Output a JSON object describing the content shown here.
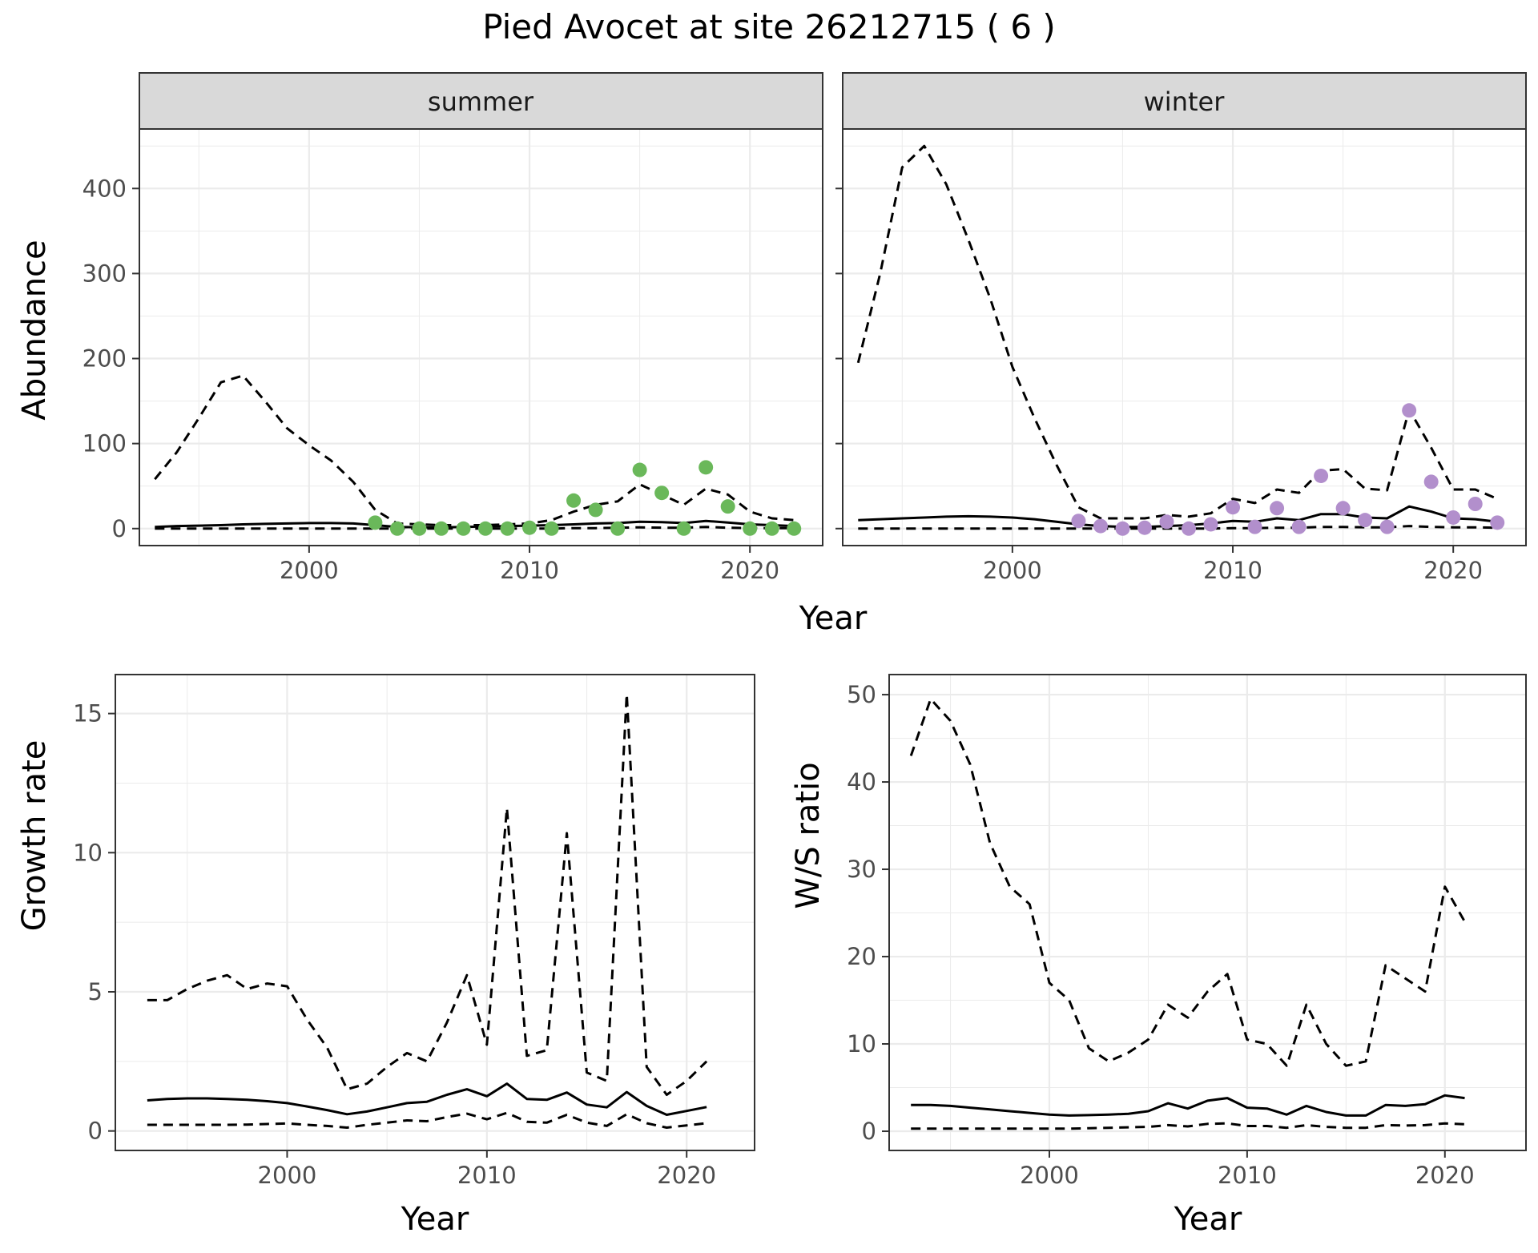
{
  "title": "Pied Avocet at site 26212715 ( 6 )",
  "colors": {
    "summer_points": "#6ab85a",
    "winter_points": "#b28fcc",
    "line": "#000000",
    "strip_fill": "#d9d9d9",
    "grid": "#ebebeb",
    "tick_text": "#4d4d4d"
  },
  "chart_data": [
    {
      "type": "line",
      "panel": "abundance",
      "facets": [
        "summer",
        "winter"
      ],
      "ylabel": "Abundance",
      "xlabel": "Year",
      "xlim": [
        1992.3,
        2023.3
      ],
      "ylim": [
        -20,
        470
      ],
      "x_ticks": [
        2000,
        2010,
        2020
      ],
      "y_ticks": [
        0,
        100,
        200,
        300,
        400
      ],
      "grid": true,
      "series": [
        {
          "facet": "summer",
          "style": "solid",
          "role": "estimate",
          "x": [
            1993,
            1994,
            1995,
            1996,
            1997,
            1998,
            1999,
            2000,
            2001,
            2002,
            2003,
            2004,
            2005,
            2006,
            2007,
            2008,
            2009,
            2010,
            2011,
            2012,
            2013,
            2014,
            2015,
            2016,
            2017,
            2018,
            2019,
            2020,
            2021,
            2022
          ],
          "y": [
            2,
            3,
            3.5,
            4,
            5,
            5.5,
            6,
            6.5,
            6.5,
            6,
            4,
            2,
            1.5,
            1.5,
            2,
            2.5,
            3,
            3.5,
            4,
            5,
            6,
            6.5,
            8,
            7.5,
            6.5,
            9,
            7,
            5,
            4,
            3
          ]
        },
        {
          "facet": "summer",
          "style": "dashed",
          "role": "upper",
          "x": [
            1993,
            1994,
            1995,
            1996,
            1997,
            1998,
            1999,
            2000,
            2001,
            2002,
            2003,
            2004,
            2005,
            2006,
            2007,
            2008,
            2009,
            2010,
            2011,
            2012,
            2013,
            2014,
            2015,
            2016,
            2017,
            2018,
            2019,
            2020,
            2021,
            2022
          ],
          "y": [
            58,
            90,
            130,
            172,
            180,
            150,
            118,
            98,
            80,
            55,
            22,
            6,
            5,
            4,
            4,
            4,
            5,
            6,
            10,
            20,
            28,
            32,
            52,
            40,
            28,
            47,
            40,
            20,
            12,
            10
          ]
        },
        {
          "facet": "summer",
          "style": "dashed",
          "role": "lower",
          "x": [
            1993,
            1994,
            1995,
            1996,
            1997,
            1998,
            1999,
            2000,
            2001,
            2002,
            2003,
            2004,
            2005,
            2006,
            2007,
            2008,
            2009,
            2010,
            2011,
            2012,
            2013,
            2014,
            2015,
            2016,
            2017,
            2018,
            2019,
            2020,
            2021,
            2022
          ],
          "y": [
            0,
            0,
            0,
            0,
            0,
            0,
            0,
            0,
            0,
            0,
            0,
            0,
            0,
            0,
            0,
            0,
            0,
            0,
            0,
            0.5,
            0.5,
            1,
            1.5,
            1,
            1,
            2,
            1,
            0.5,
            0.5,
            0.5
          ]
        },
        {
          "facet": "summer",
          "style": "points",
          "role": "observed",
          "x": [
            2003,
            2004,
            2005,
            2006,
            2007,
            2008,
            2009,
            2010,
            2011,
            2012,
            2013,
            2014,
            2015,
            2016,
            2017,
            2018,
            2019,
            2020,
            2021,
            2022
          ],
          "y": [
            7,
            0,
            0,
            0,
            0,
            0,
            0,
            1,
            0,
            33,
            22,
            0,
            69,
            42,
            0,
            72,
            26,
            0,
            0,
            0
          ]
        },
        {
          "facet": "winter",
          "style": "solid",
          "role": "estimate",
          "x": [
            1993,
            1994,
            1995,
            1996,
            1997,
            1998,
            1999,
            2000,
            2001,
            2002,
            2003,
            2004,
            2005,
            2006,
            2007,
            2008,
            2009,
            2010,
            2011,
            2012,
            2013,
            2014,
            2015,
            2016,
            2017,
            2018,
            2019,
            2020,
            2021,
            2022
          ],
          "y": [
            10,
            11,
            12,
            13,
            14,
            14.5,
            14,
            13,
            11,
            8,
            5,
            3,
            2,
            2,
            3,
            4,
            6,
            9,
            8,
            12,
            10,
            17,
            17,
            13,
            12,
            26,
            20,
            12,
            11,
            8
          ]
        },
        {
          "facet": "winter",
          "style": "dashed",
          "role": "upper",
          "x": [
            1993,
            1994,
            1995,
            1996,
            1997,
            1998,
            1999,
            2000,
            2001,
            2002,
            2003,
            2004,
            2005,
            2006,
            2007,
            2008,
            2009,
            2010,
            2011,
            2012,
            2013,
            2014,
            2015,
            2016,
            2017,
            2018,
            2019,
            2020,
            2021,
            2022
          ],
          "y": [
            195,
            300,
            425,
            450,
            405,
            340,
            270,
            190,
            130,
            75,
            25,
            12,
            12,
            12,
            16,
            14,
            18,
            35,
            30,
            46,
            42,
            68,
            70,
            47,
            45,
            140,
            95,
            46,
            46,
            35
          ]
        },
        {
          "facet": "winter",
          "style": "dashed",
          "role": "lower",
          "x": [
            1993,
            1994,
            1995,
            1996,
            1997,
            1998,
            1999,
            2000,
            2001,
            2002,
            2003,
            2004,
            2005,
            2006,
            2007,
            2008,
            2009,
            2010,
            2011,
            2012,
            2013,
            2014,
            2015,
            2016,
            2017,
            2018,
            2019,
            2020,
            2021,
            2022
          ],
          "y": [
            0,
            0,
            0,
            0,
            0,
            0,
            0,
            0,
            0,
            0,
            0,
            0,
            0,
            0,
            0,
            0,
            0,
            0.5,
            0.5,
            1,
            1,
            2,
            2,
            1.5,
            1.5,
            3,
            2,
            1.5,
            1.5,
            1
          ]
        },
        {
          "facet": "winter",
          "style": "points",
          "role": "observed",
          "x": [
            2003,
            2004,
            2005,
            2006,
            2007,
            2008,
            2009,
            2010,
            2011,
            2012,
            2013,
            2014,
            2015,
            2016,
            2017,
            2018,
            2019,
            2020,
            2021,
            2022
          ],
          "y": [
            9,
            3,
            0,
            1,
            8,
            0,
            5,
            25,
            2,
            24,
            2,
            62,
            24,
            10,
            2,
            139,
            55,
            13,
            29,
            7
          ]
        }
      ]
    },
    {
      "type": "line",
      "panel": "growth",
      "ylabel": "Growth rate",
      "xlabel": "Year",
      "xlim": [
        1991.4,
        2023.4
      ],
      "ylim": [
        -0.7,
        16.4
      ],
      "x_ticks": [
        2000,
        2010,
        2020
      ],
      "y_ticks": [
        0,
        5,
        10,
        15
      ],
      "grid": true,
      "series": [
        {
          "style": "solid",
          "role": "estimate",
          "x": [
            1993,
            1994,
            1995,
            1996,
            1997,
            1998,
            1999,
            2000,
            2001,
            2002,
            2003,
            2004,
            2005,
            2006,
            2007,
            2008,
            2009,
            2010,
            2011,
            2012,
            2013,
            2014,
            2015,
            2016,
            2017,
            2018,
            2019,
            2020,
            2021
          ],
          "y": [
            1.1,
            1.15,
            1.17,
            1.17,
            1.15,
            1.12,
            1.07,
            1.0,
            0.88,
            0.75,
            0.6,
            0.7,
            0.85,
            1.0,
            1.05,
            1.3,
            1.5,
            1.25,
            1.7,
            1.15,
            1.12,
            1.38,
            0.95,
            0.85,
            1.4,
            0.9,
            0.58,
            0.72,
            0.86
          ]
        },
        {
          "style": "dashed",
          "role": "upper",
          "x": [
            1993,
            1994,
            1995,
            1996,
            1997,
            1998,
            1999,
            2000,
            2001,
            2002,
            2003,
            2004,
            2005,
            2006,
            2007,
            2008,
            2009,
            2010,
            2011,
            2012,
            2013,
            2014,
            2015,
            2016,
            2017,
            2018,
            2019,
            2020,
            2021
          ],
          "y": [
            4.7,
            4.7,
            5.1,
            5.4,
            5.6,
            5.1,
            5.3,
            5.2,
            4.0,
            3.0,
            1.5,
            1.7,
            2.3,
            2.8,
            2.5,
            3.9,
            5.6,
            3.1,
            11.6,
            2.7,
            2.9,
            10.7,
            2.1,
            1.8,
            15.7,
            2.3,
            1.3,
            1.8,
            2.5
          ]
        },
        {
          "style": "dashed",
          "role": "lower",
          "x": [
            1993,
            1994,
            1995,
            1996,
            1997,
            1998,
            1999,
            2000,
            2001,
            2002,
            2003,
            2004,
            2005,
            2006,
            2007,
            2008,
            2009,
            2010,
            2011,
            2012,
            2013,
            2014,
            2015,
            2016,
            2017,
            2018,
            2019,
            2020,
            2021
          ],
          "y": [
            0.22,
            0.22,
            0.22,
            0.22,
            0.22,
            0.23,
            0.25,
            0.27,
            0.22,
            0.18,
            0.12,
            0.22,
            0.3,
            0.38,
            0.35,
            0.5,
            0.62,
            0.42,
            0.65,
            0.33,
            0.3,
            0.58,
            0.3,
            0.18,
            0.6,
            0.28,
            0.12,
            0.2,
            0.28
          ]
        }
      ]
    },
    {
      "type": "line",
      "panel": "ws_ratio",
      "ylabel": "W/S ratio",
      "xlabel": "Year",
      "xlim": [
        1991.9,
        2024.1
      ],
      "ylim": [
        -2.2,
        52.3
      ],
      "x_ticks": [
        2000,
        2010,
        2020
      ],
      "y_ticks": [
        0,
        10,
        20,
        30,
        40,
        50
      ],
      "grid": true,
      "series": [
        {
          "style": "solid",
          "role": "estimate",
          "x": [
            1993,
            1994,
            1995,
            1996,
            1997,
            1998,
            1999,
            2000,
            2001,
            2002,
            2003,
            2004,
            2005,
            2006,
            2007,
            2008,
            2009,
            2010,
            2011,
            2012,
            2013,
            2014,
            2015,
            2016,
            2017,
            2018,
            2019,
            2020,
            2021
          ],
          "y": [
            3.0,
            3.0,
            2.9,
            2.7,
            2.5,
            2.3,
            2.1,
            1.9,
            1.8,
            1.85,
            1.9,
            2.0,
            2.3,
            3.2,
            2.6,
            3.5,
            3.8,
            2.7,
            2.6,
            1.9,
            2.9,
            2.2,
            1.8,
            1.8,
            3.0,
            2.9,
            3.1,
            4.1,
            3.8
          ]
        },
        {
          "style": "dashed",
          "role": "upper",
          "x": [
            1993,
            1994,
            1995,
            1996,
            1997,
            1998,
            1999,
            2000,
            2001,
            2002,
            2003,
            2004,
            2005,
            2006,
            2007,
            2008,
            2009,
            2010,
            2011,
            2012,
            2013,
            2014,
            2015,
            2016,
            2017,
            2018,
            2019,
            2020,
            2021
          ],
          "y": [
            43,
            49.5,
            47,
            42,
            33,
            28,
            26,
            17,
            15,
            9.5,
            8,
            9,
            10.5,
            14.5,
            13,
            16,
            18,
            10.5,
            10,
            7.5,
            14.5,
            10,
            7.5,
            8,
            19,
            17.5,
            16,
            28,
            24
          ]
        },
        {
          "style": "dashed",
          "role": "lower",
          "x": [
            1993,
            1994,
            1995,
            1996,
            1997,
            1998,
            1999,
            2000,
            2001,
            2002,
            2003,
            2004,
            2005,
            2006,
            2007,
            2008,
            2009,
            2010,
            2011,
            2012,
            2013,
            2014,
            2015,
            2016,
            2017,
            2018,
            2019,
            2020,
            2021
          ],
          "y": [
            0.3,
            0.3,
            0.3,
            0.3,
            0.3,
            0.3,
            0.3,
            0.3,
            0.3,
            0.35,
            0.4,
            0.45,
            0.5,
            0.7,
            0.55,
            0.85,
            0.9,
            0.6,
            0.6,
            0.4,
            0.7,
            0.5,
            0.4,
            0.4,
            0.7,
            0.65,
            0.7,
            0.9,
            0.8
          ]
        }
      ]
    }
  ]
}
